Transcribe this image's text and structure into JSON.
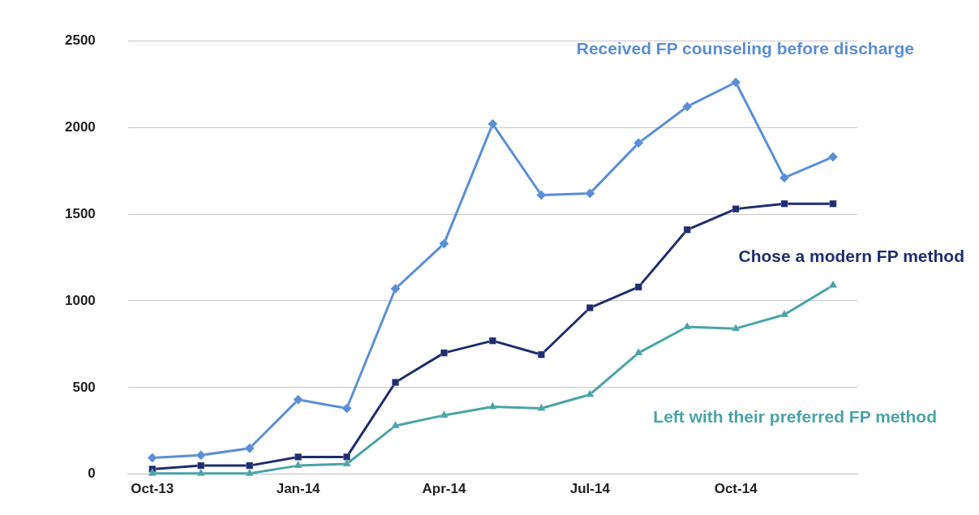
{
  "chart_data": {
    "type": "line",
    "categories": [
      "Oct-13",
      null,
      null,
      "Jan-14",
      null,
      null,
      "Apr-14",
      null,
      null,
      "Jul-14",
      null,
      null,
      "Oct-14",
      null,
      null
    ],
    "series": [
      {
        "name": "Received FP counseling before discharge",
        "color": "#5b8ed6",
        "marker": "diamond",
        "values": [
          95,
          110,
          150,
          430,
          380,
          1070,
          1330,
          2020,
          1610,
          1620,
          1910,
          2120,
          2260,
          1710,
          1830
        ]
      },
      {
        "name": "Chose a modern FP method",
        "color": "#1f2d6e",
        "marker": "square",
        "values": [
          30,
          50,
          50,
          100,
          100,
          530,
          700,
          770,
          690,
          960,
          1080,
          1410,
          1530,
          1560,
          1560
        ]
      },
      {
        "name": "Left with their preferred FP method",
        "color": "#4aa3a6",
        "marker": "triangle",
        "values": [
          5,
          5,
          5,
          50,
          60,
          280,
          340,
          390,
          380,
          460,
          700,
          850,
          840,
          920,
          1090
        ]
      }
    ],
    "ylim": [
      0,
      2500
    ],
    "yticks": [
      0,
      500,
      1000,
      1500,
      2000,
      2500
    ],
    "grid": "y",
    "legend": false
  }
}
